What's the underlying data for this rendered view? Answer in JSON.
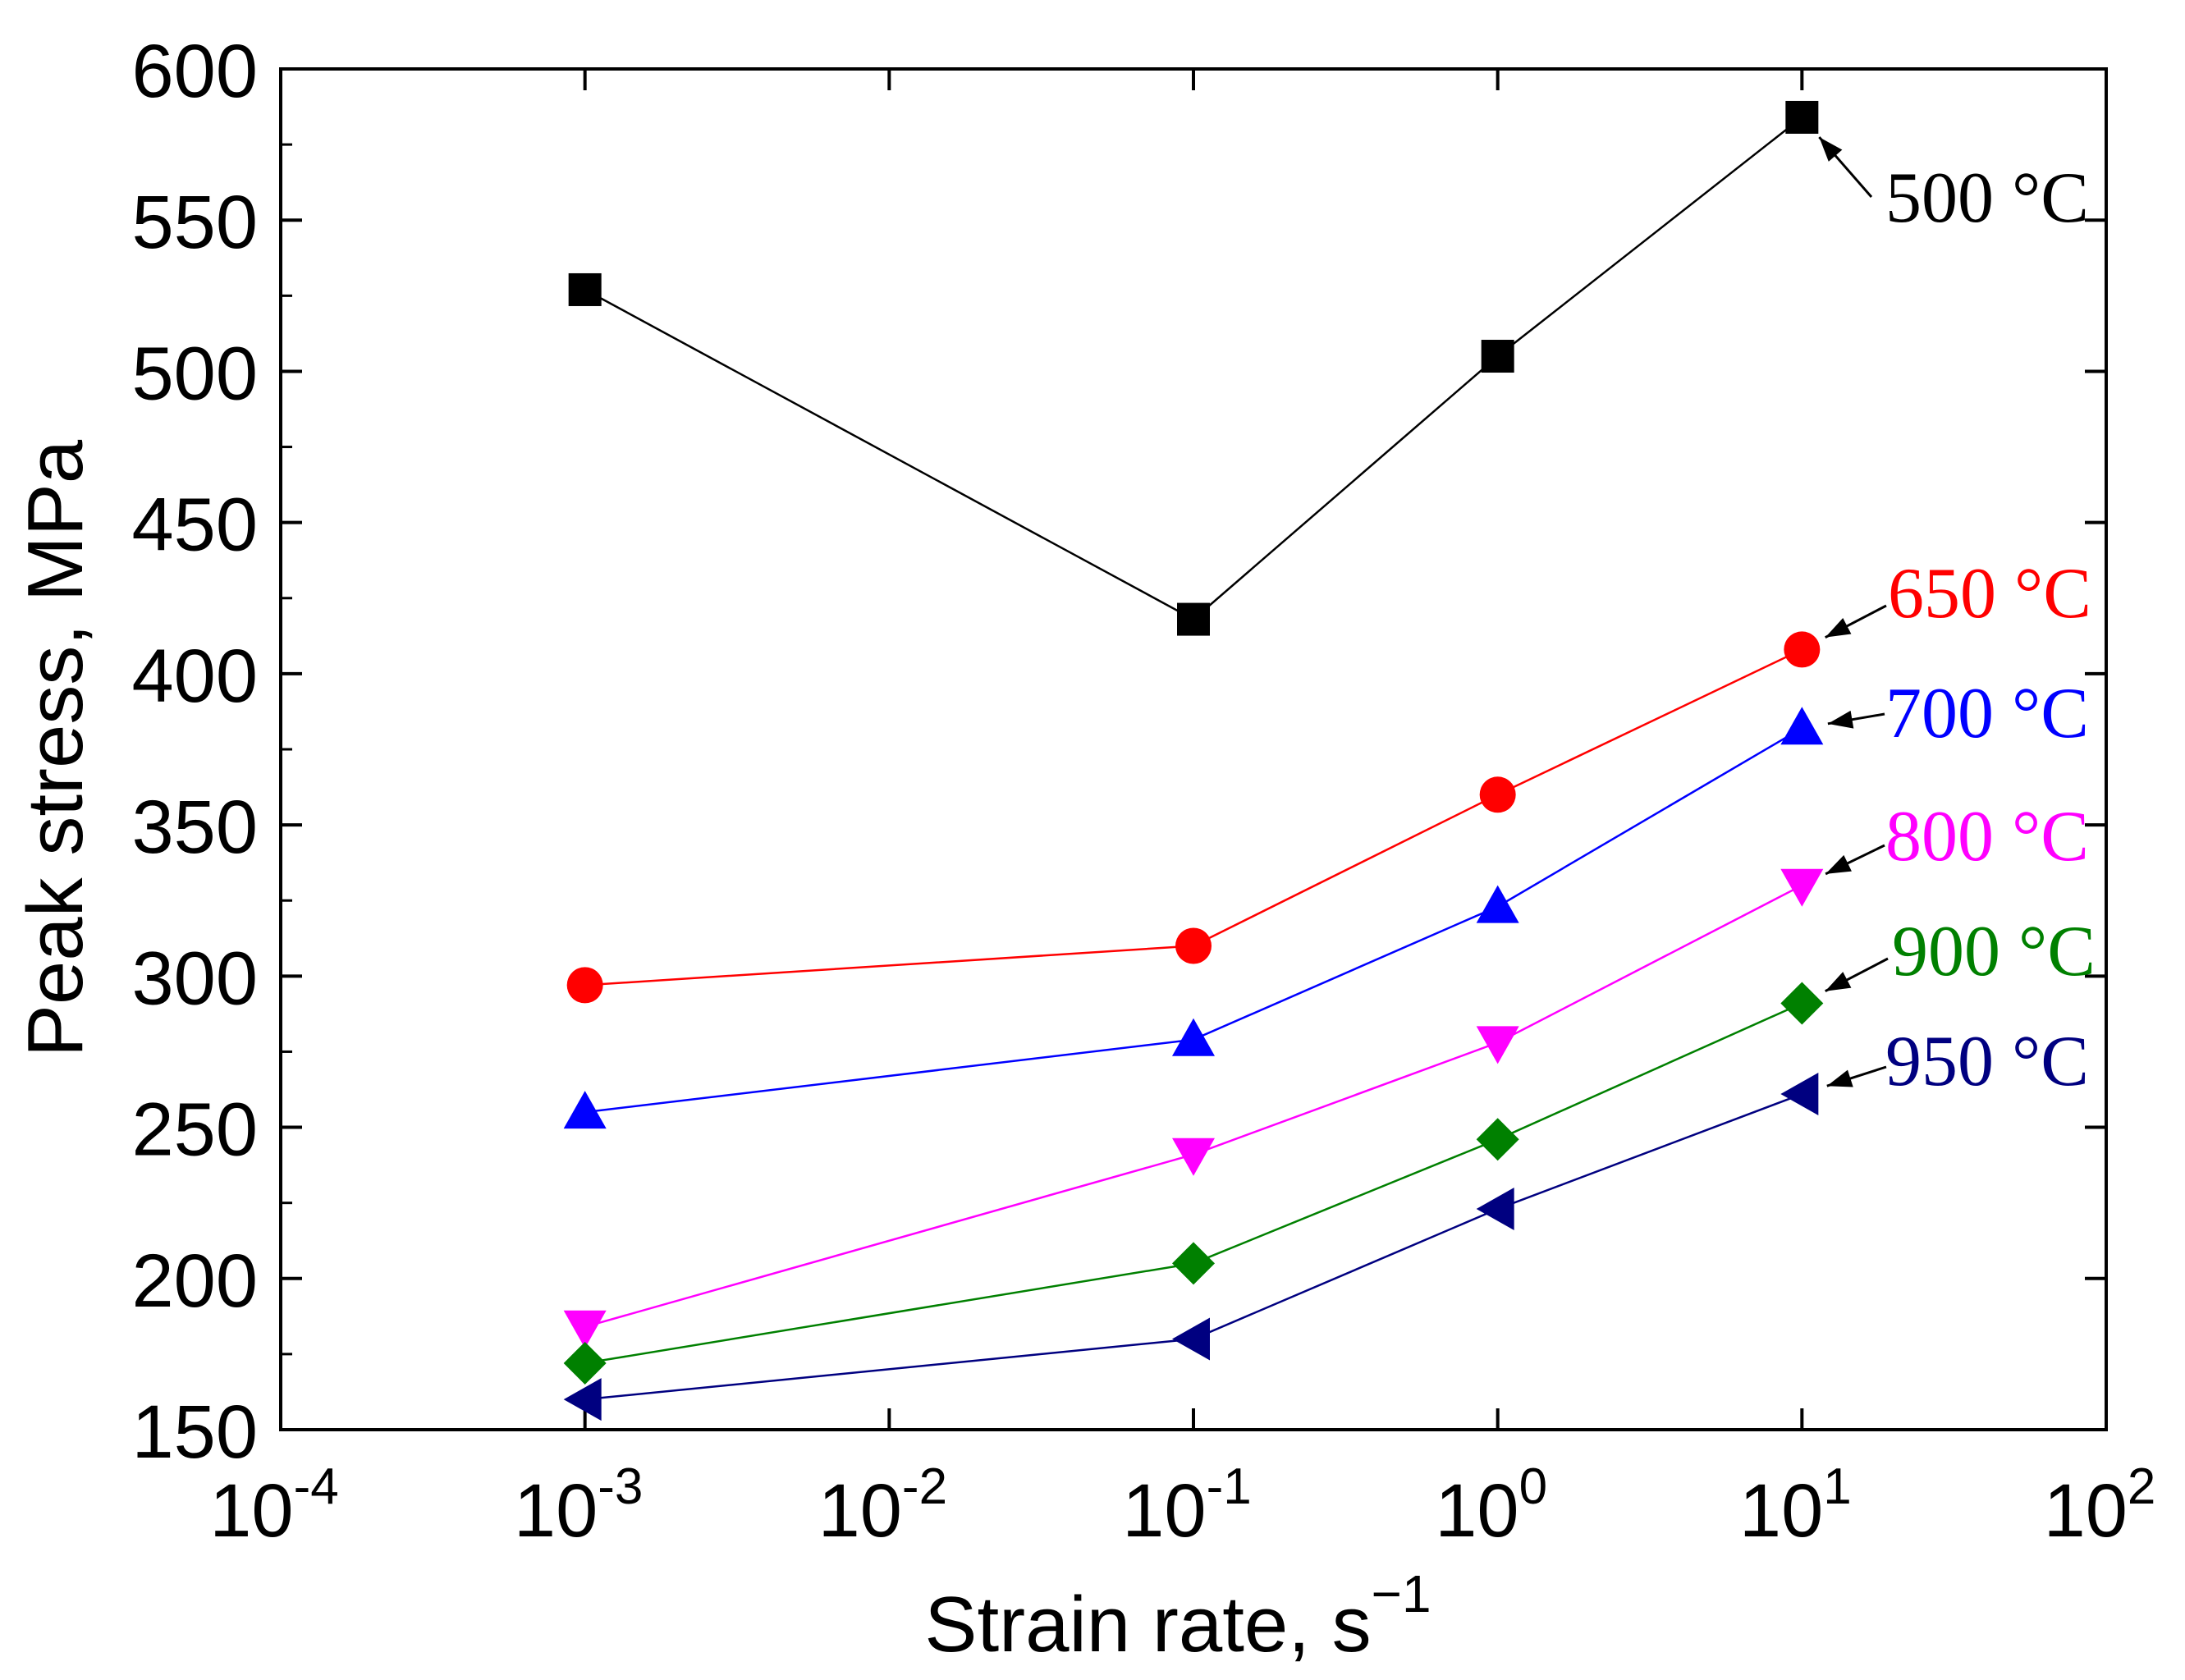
{
  "chart_data": {
    "type": "line",
    "title": "",
    "xlabel": "Strain rate, s",
    "xlabel_exp": "−1",
    "ylabel": "Peak stress, MPa",
    "xscale": "log",
    "xlim_exp": [
      -4,
      2
    ],
    "ylim": [
      150,
      600
    ],
    "grid": false,
    "x_ticks": [
      {
        "base": "10",
        "exp": "-4",
        "value": 0.0001
      },
      {
        "base": "10",
        "exp": "-3",
        "value": 0.001
      },
      {
        "base": "10",
        "exp": "-2",
        "value": 0.01
      },
      {
        "base": "10",
        "exp": "-1",
        "value": 0.1
      },
      {
        "base": "10",
        "exp": "0",
        "value": 1
      },
      {
        "base": "10",
        "exp": "1",
        "value": 10
      },
      {
        "base": "10",
        "exp": "2",
        "value": 100
      }
    ],
    "y_ticks": [
      "150",
      "200",
      "250",
      "300",
      "350",
      "400",
      "450",
      "500",
      "550",
      "600"
    ],
    "x": [
      0.001,
      0.1,
      1,
      10
    ],
    "series": [
      {
        "name": "500 °C",
        "color": "#000000",
        "marker": "square",
        "values": [
          527,
          418,
          505,
          584
        ]
      },
      {
        "name": "650 °C",
        "color": "#ff0000",
        "marker": "circle",
        "values": [
          297,
          310,
          360,
          408
        ]
      },
      {
        "name": "700 °C",
        "color": "#0000ff",
        "marker": "triangle-up",
        "values": [
          255,
          279,
          323,
          382
        ]
      },
      {
        "name": "800 °C",
        "color": "#ff00ff",
        "marker": "triangle-down",
        "values": [
          184,
          241,
          278,
          330
        ]
      },
      {
        "name": "900 °C",
        "color": "#008000",
        "marker": "diamond",
        "values": [
          172,
          205,
          246,
          291
        ]
      },
      {
        "name": "950 °C",
        "color": "#000080",
        "marker": "triangle-left",
        "values": [
          160,
          180,
          223,
          261
        ]
      }
    ]
  }
}
